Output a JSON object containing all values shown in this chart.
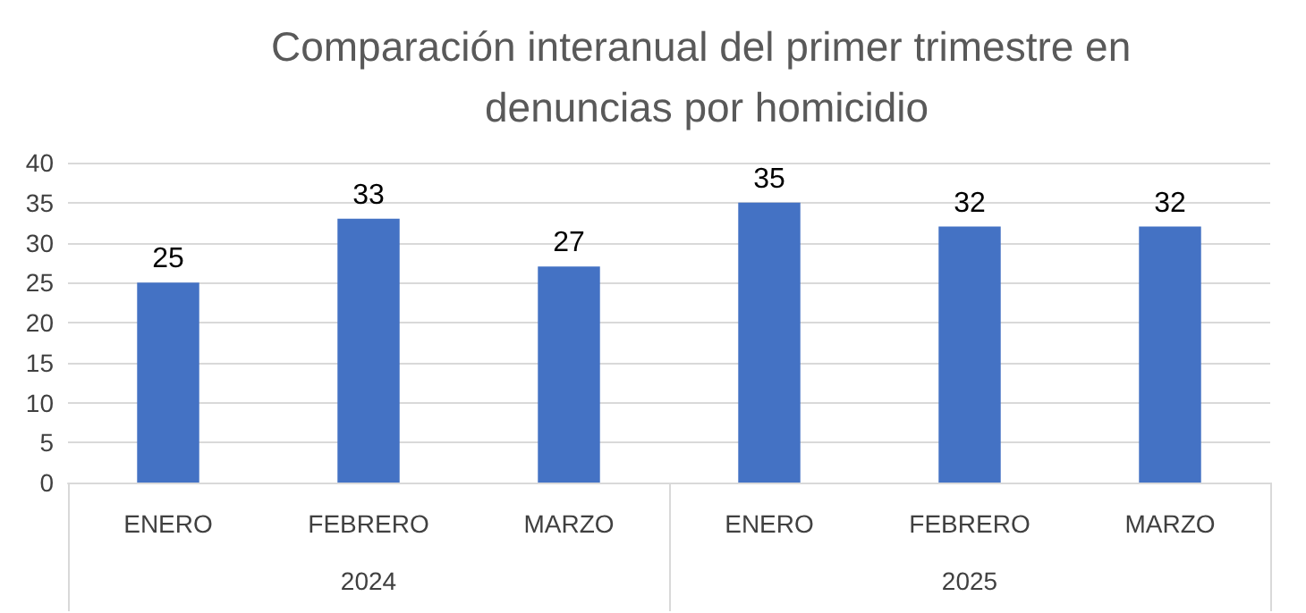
{
  "chart_data": {
    "type": "bar",
    "title": "Comparación interanual del primer trimestre en denuncias por homicidio",
    "categories": [
      "ENERO",
      "FEBRERO",
      "MARZO",
      "ENERO",
      "FEBRERO",
      "MARZO"
    ],
    "values": [
      25,
      33,
      27,
      35,
      32,
      32
    ],
    "color": "#4472c4",
    "ylim": [
      0,
      40
    ],
    "yticks": [
      0,
      5,
      10,
      15,
      20,
      25,
      30,
      35,
      40
    ],
    "grid": "y",
    "data_labels": true,
    "annotations": [
      "2024",
      "2025"
    ]
  }
}
